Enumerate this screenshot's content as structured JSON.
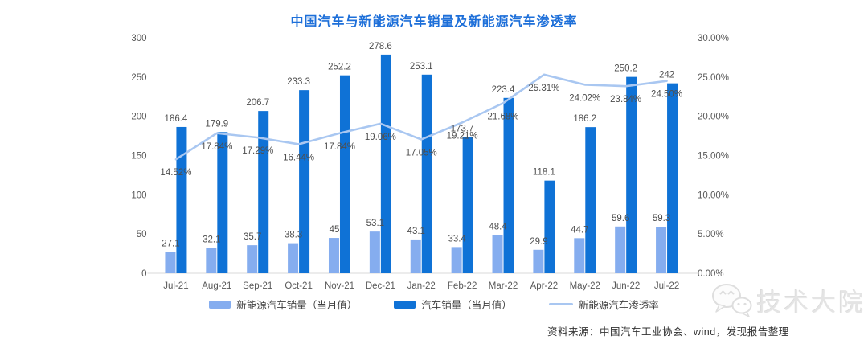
{
  "title": "中国汽车与新能源汽车销量及新能源汽车渗透率",
  "chart_data": {
    "type": "combo",
    "categories": [
      "Jul-21",
      "Aug-21",
      "Sep-21",
      "Oct-21",
      "Nov-21",
      "Dec-21",
      "Jan-22",
      "Feb-22",
      "Mar-22",
      "Apr-22",
      "May-22",
      "Jun-22",
      "Jul-22"
    ],
    "series": [
      {
        "name": "新能源汽车销量（当月值）",
        "type": "bar",
        "axis": "left",
        "color": "#85ADEF",
        "values": [
          27.1,
          32.1,
          35.7,
          38.3,
          45,
          53.1,
          43.1,
          33.4,
          48.4,
          29.9,
          44.7,
          59.6,
          59.3
        ],
        "labels": [
          "27.1",
          "32.1",
          "35.7",
          "38.3",
          "45",
          "53.1",
          "43.1",
          "33.4",
          "48.4",
          "29.9",
          "44.7",
          "59.6",
          "59.3"
        ]
      },
      {
        "name": "汽车销量（当月值）",
        "type": "bar",
        "axis": "left",
        "color": "#0F72D6",
        "values": [
          186.4,
          179.9,
          206.7,
          233.3,
          252.2,
          278.6,
          253.1,
          173.7,
          223.4,
          118.1,
          186.2,
          250.2,
          242
        ],
        "labels": [
          "186.4",
          "179.9",
          "206.7",
          "233.3",
          "252.2",
          "278.6",
          "253.1",
          "173.7",
          "223.4",
          "118.1",
          "186.2",
          "250.2",
          "242"
        ]
      },
      {
        "name": "新能源汽车渗透率",
        "type": "line",
        "axis": "right",
        "color": "#A9C7F1",
        "values": [
          14.52,
          17.84,
          17.29,
          16.44,
          17.84,
          19.06,
          17.05,
          19.21,
          21.68,
          25.31,
          24.02,
          23.84,
          24.5
        ],
        "labels": [
          "14.52%",
          "17.84%",
          "17.29%",
          "16.44%",
          "17.84%",
          "19.06%",
          "17.05%",
          "19.21%",
          "21.68%",
          "25.31%",
          "24.02%",
          "23.84%",
          "24.50%"
        ]
      }
    ],
    "left_axis": {
      "min": 0,
      "max": 300,
      "ticks": [
        "0",
        "50",
        "100",
        "150",
        "200",
        "250",
        "300"
      ]
    },
    "right_axis": {
      "min": 0,
      "max": 30,
      "ticks": [
        "0.00%",
        "5.00%",
        "10.00%",
        "15.00%",
        "20.00%",
        "25.00%",
        "30.00%"
      ]
    },
    "grid": false,
    "legend_position": "bottom"
  },
  "legend": {
    "items": [
      {
        "label": "新能源汽车销量（当月值）",
        "type": "bar",
        "color": "#85ADEF"
      },
      {
        "label": "汽车销量（当月值）",
        "type": "bar",
        "color": "#0F72D6"
      },
      {
        "label": "新能源汽车渗透率",
        "type": "line",
        "color": "#A9C7F1"
      }
    ]
  },
  "source_note": "资料来源：中国汽车工业协会、wind，发现报告整理",
  "watermark": {
    "text": "技术大院",
    "icon": "wechat-icon"
  },
  "colors": {
    "title": "#1D6FD9",
    "bar_light": "#85ADEF",
    "bar_dark": "#0F72D6",
    "line": "#A9C7F1",
    "label_text": "#4f4f4f",
    "axis_line": "#D9D9D9"
  }
}
